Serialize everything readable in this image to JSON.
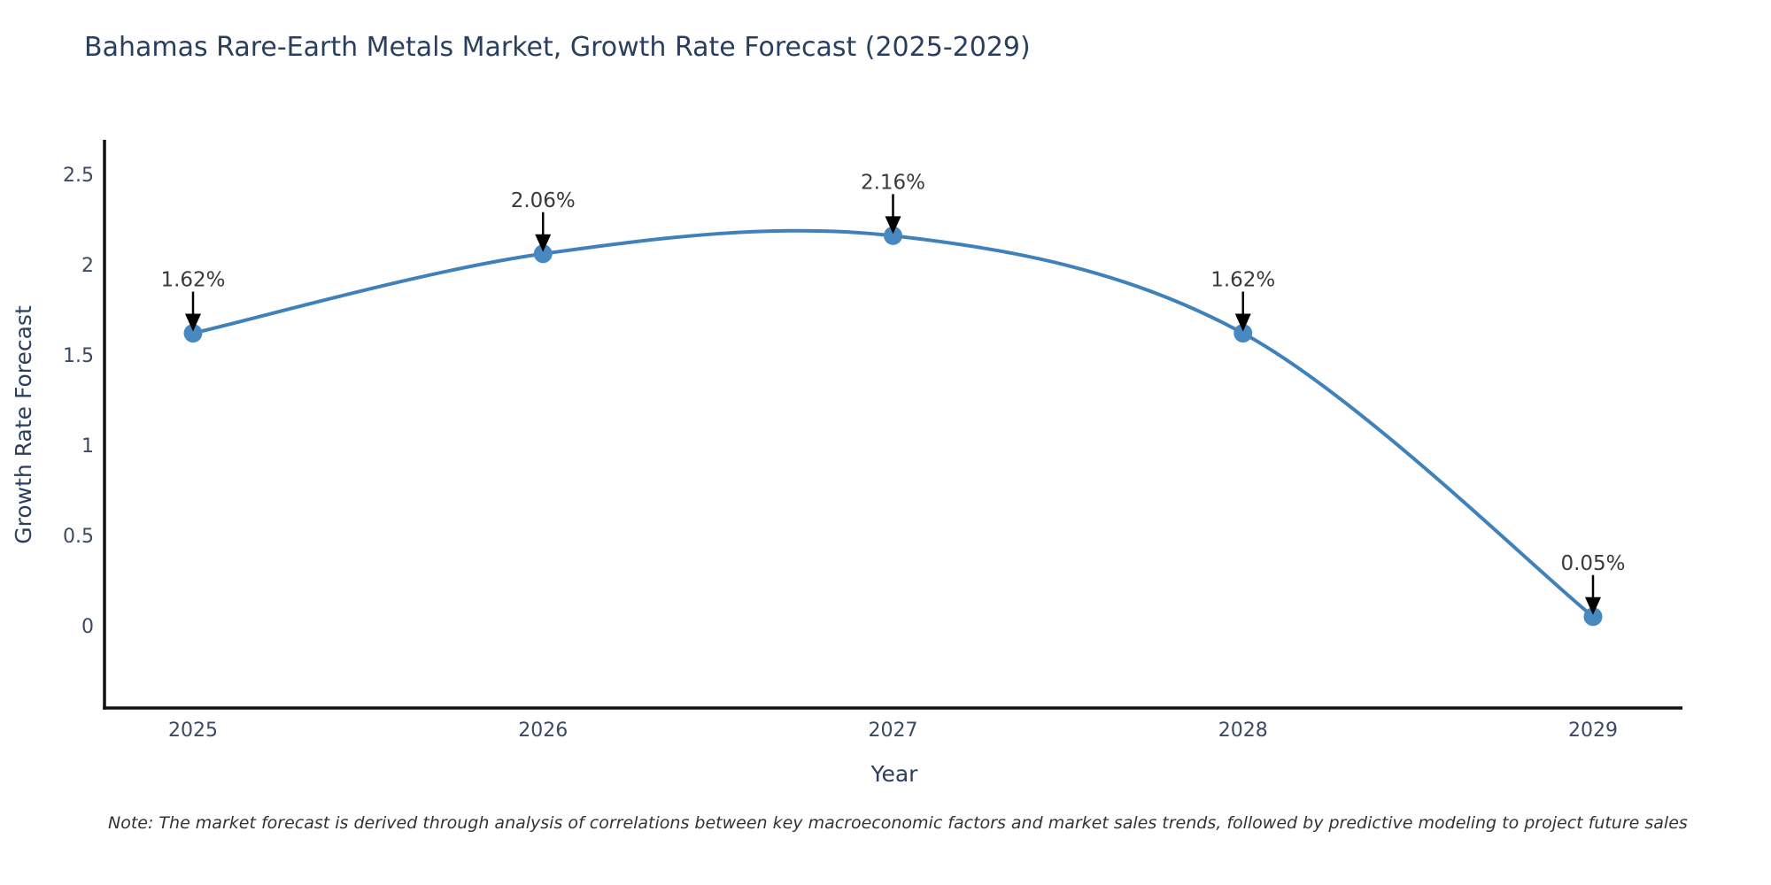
{
  "page": {
    "title": "Bahamas Rare-Earth Metals Market, Growth Rate Forecast (2025-2029)",
    "note": "Note: The market forecast is derived through analysis of correlations between key macroeconomic factors and market sales trends, followed by predictive modeling to project future sales"
  },
  "chart_data": {
    "type": "line",
    "title": "Bahamas Rare-Earth Metals Market, Growth Rate Forecast (2025-2029)",
    "xlabel": "Year",
    "ylabel": "Growth Rate Forecast",
    "categories": [
      "2025",
      "2026",
      "2027",
      "2028",
      "2029"
    ],
    "values": [
      1.62,
      2.06,
      2.16,
      1.62,
      0.05
    ],
    "point_labels": [
      "1.62%",
      "2.06%",
      "2.16%",
      "1.62%",
      "0.05%"
    ],
    "y_ticks": [
      0,
      0.5,
      1,
      1.5,
      2,
      2.5
    ],
    "ylim": [
      -0.46,
      2.68
    ],
    "grid": false,
    "legend": "none",
    "curve": "spline",
    "line_color": "#3f81ba",
    "marker_color": "#4788c1",
    "arrow_color": "#000000"
  },
  "colors": {
    "background": "#ffffff",
    "title_text": "#2a3f5f",
    "tick_text": "#3b4a63",
    "annotation_text": "#3a3a3a",
    "axis_line": "#111111",
    "note_text": "#333333"
  }
}
